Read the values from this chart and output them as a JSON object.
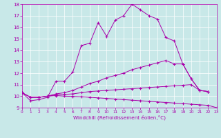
{
  "xlabel": "Windchill (Refroidissement éolien,°C)",
  "bg_color": "#c8e8e8",
  "line_color": "#aa00aa",
  "xlim": [
    0,
    23
  ],
  "ylim": [
    9,
    18
  ],
  "xticks": [
    0,
    1,
    2,
    3,
    4,
    5,
    6,
    7,
    8,
    9,
    10,
    11,
    12,
    13,
    14,
    15,
    16,
    17,
    18,
    19,
    20,
    21,
    22,
    23
  ],
  "yticks": [
    9,
    10,
    11,
    12,
    13,
    14,
    15,
    16,
    17,
    18
  ],
  "series": [
    {
      "x": [
        0,
        1,
        2,
        3,
        4,
        5,
        6,
        7,
        8,
        9,
        10,
        11,
        12,
        13,
        14,
        15,
        16,
        17,
        18,
        19,
        20,
        21,
        22
      ],
      "y": [
        10.3,
        9.6,
        9.7,
        9.9,
        11.3,
        11.3,
        12.1,
        14.4,
        14.6,
        16.4,
        15.2,
        16.6,
        17.0,
        18.0,
        17.5,
        17.0,
        16.7,
        15.1,
        14.8,
        12.8,
        11.5,
        10.5,
        10.4
      ]
    },
    {
      "x": [
        0,
        1,
        2,
        3,
        4,
        5,
        6,
        7,
        8,
        9,
        10,
        11,
        12,
        13,
        14,
        15,
        16,
        17,
        18,
        19,
        20,
        21,
        22
      ],
      "y": [
        10.3,
        9.9,
        9.9,
        10.0,
        10.2,
        10.3,
        10.5,
        10.8,
        11.1,
        11.3,
        11.6,
        11.8,
        12.0,
        12.3,
        12.5,
        12.7,
        12.9,
        13.1,
        12.8,
        12.8,
        11.5,
        10.5,
        10.4
      ]
    },
    {
      "x": [
        0,
        1,
        2,
        3,
        4,
        5,
        6,
        7,
        8,
        9,
        10,
        11,
        12,
        13,
        14,
        15,
        16,
        17,
        18,
        19,
        20,
        21,
        22
      ],
      "y": [
        10.3,
        9.9,
        9.9,
        10.0,
        10.1,
        10.15,
        10.2,
        10.3,
        10.4,
        10.45,
        10.5,
        10.55,
        10.6,
        10.65,
        10.7,
        10.75,
        10.8,
        10.85,
        10.9,
        10.95,
        11.0,
        10.5,
        10.4
      ]
    },
    {
      "x": [
        0,
        1,
        2,
        3,
        4,
        5,
        6,
        7,
        8,
        9,
        10,
        11,
        12,
        13,
        14,
        15,
        16,
        17,
        18,
        19,
        20,
        21,
        22,
        23
      ],
      "y": [
        10.3,
        9.9,
        9.9,
        10.0,
        10.05,
        10.0,
        9.98,
        9.95,
        9.9,
        9.85,
        9.8,
        9.75,
        9.7,
        9.65,
        9.6,
        9.55,
        9.5,
        9.45,
        9.4,
        9.35,
        9.3,
        9.25,
        9.2,
        9.0
      ]
    }
  ]
}
